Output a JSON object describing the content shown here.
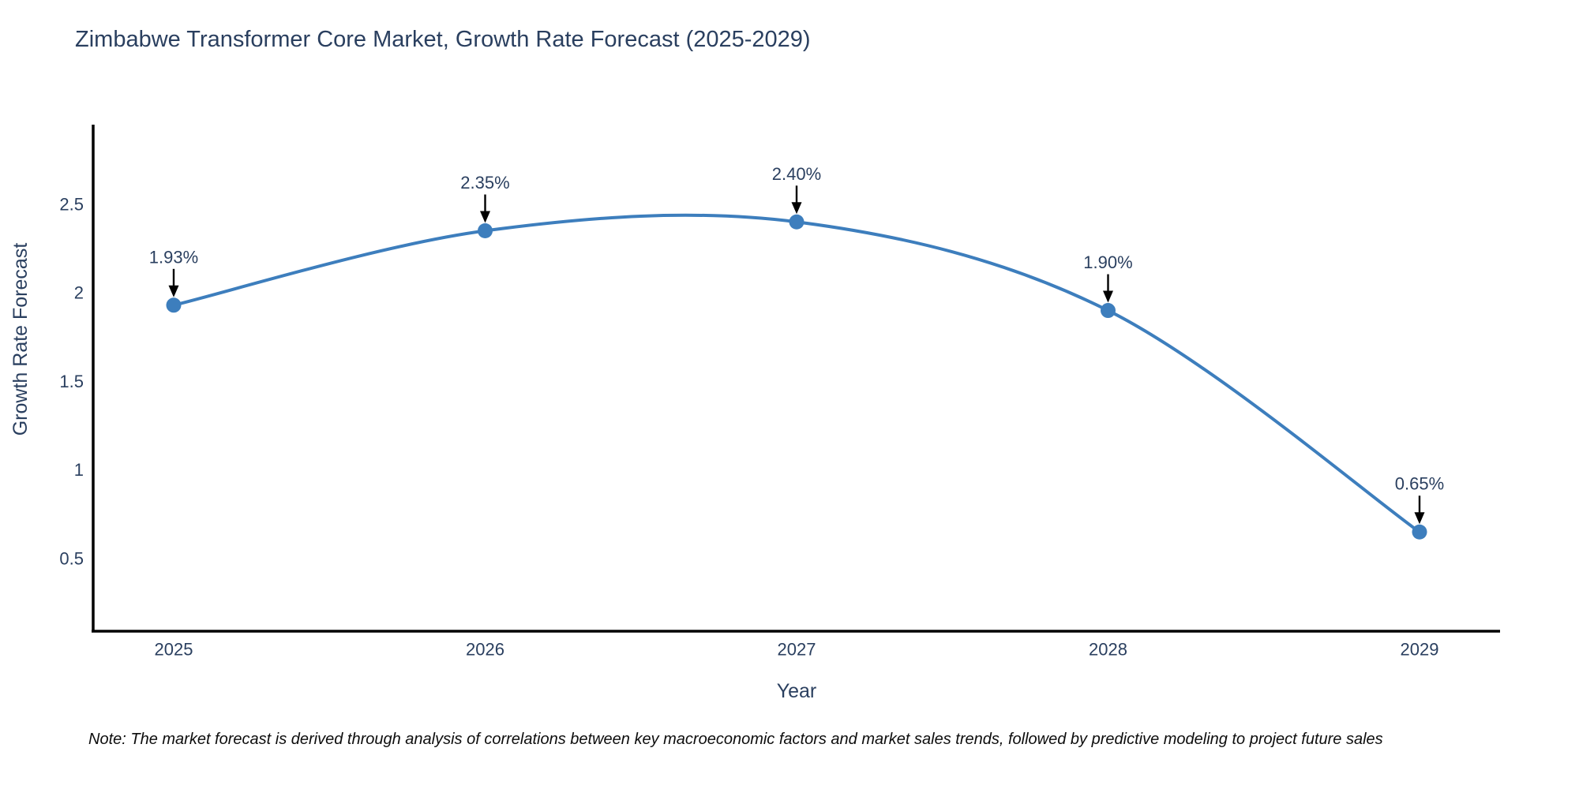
{
  "chart": {
    "title": "Zimbabwe Transformer Core Market, Growth Rate Forecast (2025-2029)"
  },
  "chart_data": {
    "type": "line",
    "line_shape": "spline",
    "title": "Zimbabwe Transformer Core Market, Growth Rate Forecast (2025-2029)",
    "xlabel": "Year",
    "ylabel": "Growth Rate Forecast",
    "x": [
      2025,
      2026,
      2027,
      2028,
      2029
    ],
    "values": [
      1.93,
      2.35,
      2.4,
      1.9,
      0.65
    ],
    "point_labels": [
      "1.93%",
      "2.35%",
      "2.40%",
      "1.90%",
      "0.65%"
    ],
    "x_tick_labels": [
      "2025",
      "2026",
      "2027",
      "2028",
      "2029"
    ],
    "y_ticks": [
      0.5,
      1,
      1.5,
      2,
      2.5
    ],
    "y_tick_labels": [
      "0.5",
      "1",
      "1.5",
      "2",
      "2.5"
    ],
    "ylim": [
      0.09,
      2.94
    ],
    "grid": false,
    "legend": "none",
    "colors": {
      "line": "#3d7ebd",
      "marker": "#3d7ebd",
      "annotation_text": "#2a3f5f",
      "annotation_arrow": "#000000",
      "axis_line": "#000000",
      "tick_text": "#2a3f5f",
      "title_text": "#2a3f5f"
    }
  },
  "note": {
    "text": "Note: The market forecast is derived through analysis of correlations between key macroeconomic factors and market sales trends, followed by predictive modeling to project future sales"
  }
}
